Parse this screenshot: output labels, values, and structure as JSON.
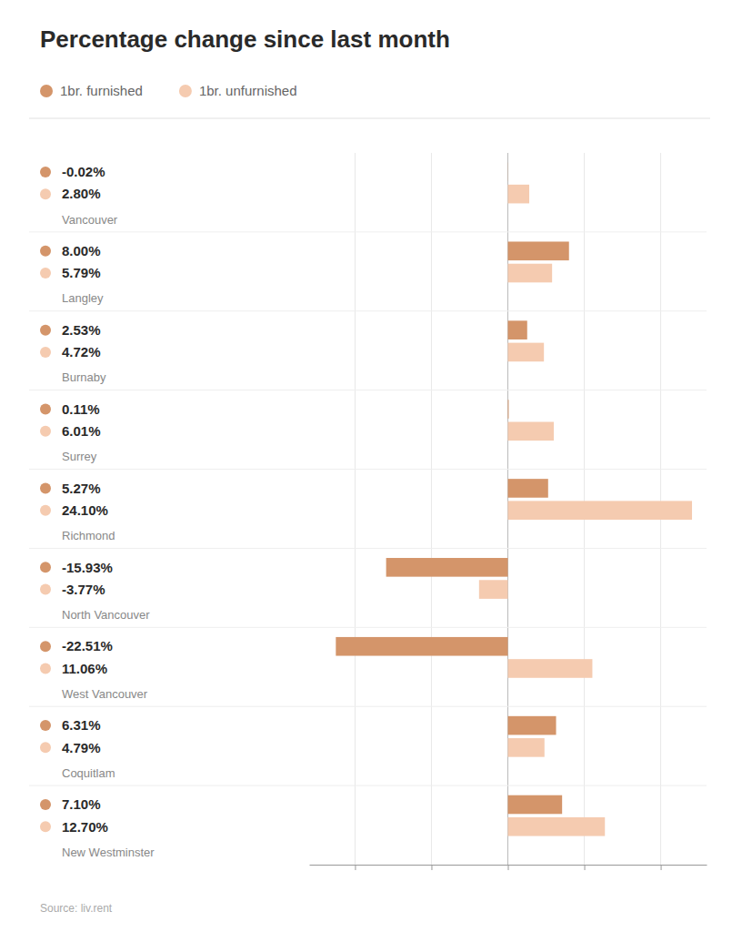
{
  "chart_data": {
    "type": "bar",
    "orientation": "horizontal",
    "title": "Percentage change since last month",
    "categories": [
      "Vancouver",
      "Langley",
      "Burnaby",
      "Surrey",
      "Richmond",
      "North Vancouver",
      "West Vancouver",
      "Coquitlam",
      "New Westminster"
    ],
    "series": [
      {
        "name": "1br. furnished",
        "color": "#D4956A",
        "values": [
          -0.02,
          8.0,
          2.53,
          0.11,
          5.27,
          -15.93,
          -22.51,
          6.31,
          7.1
        ],
        "value_labels": [
          "-0.02%",
          "8.00%",
          "2.53%",
          "0.11%",
          "5.27%",
          "-15.93%",
          "-22.51%",
          "6.31%",
          "7.10%"
        ]
      },
      {
        "name": "1br. unfurnished",
        "color": "#F5CBB0",
        "values": [
          2.8,
          5.79,
          4.72,
          6.01,
          24.1,
          -3.77,
          11.06,
          4.79,
          12.7
        ],
        "value_labels": [
          "2.80%",
          "5.79%",
          "4.72%",
          "6.01%",
          "24.10%",
          "-3.77%",
          "11.06%",
          "4.79%",
          "12.70%"
        ]
      }
    ],
    "xlim": [
      -26,
      26
    ],
    "xticks": [
      -20,
      -10,
      0,
      10,
      20
    ],
    "grid": true,
    "tick_labels": "y",
    "data_labels": true,
    "legend": "top",
    "annotations": [
      "Source: liv.rent"
    ]
  }
}
